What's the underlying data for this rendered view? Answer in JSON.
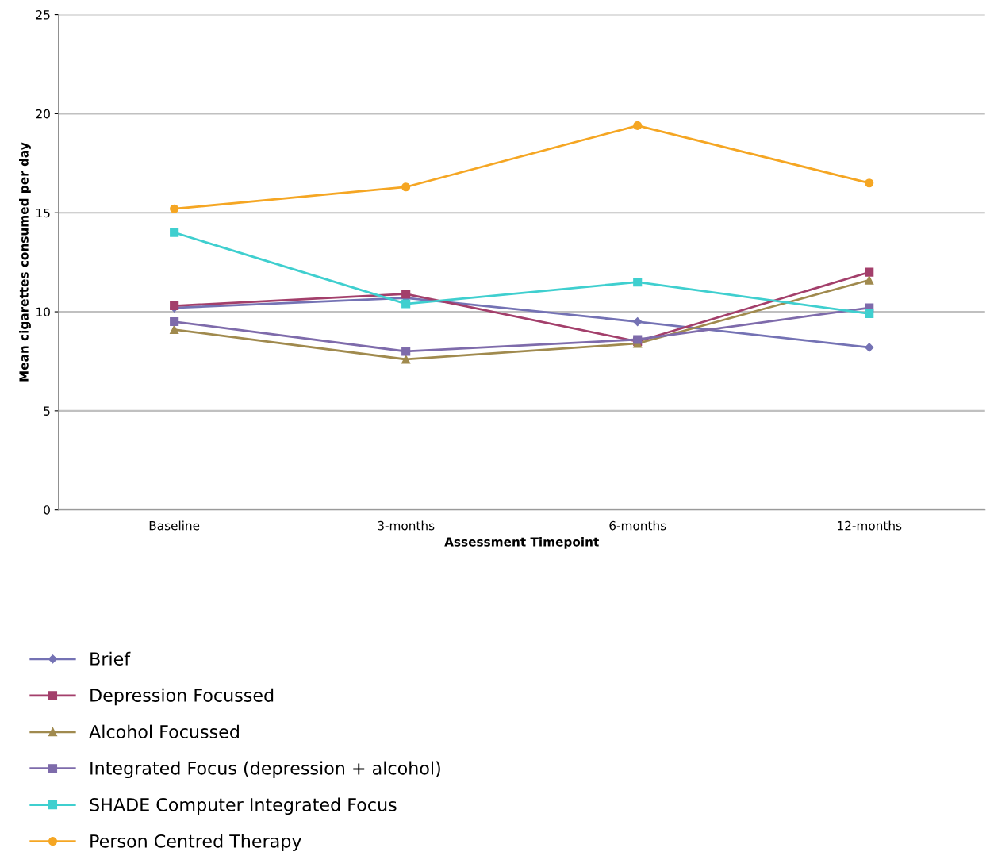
{
  "chart_data": {
    "type": "line",
    "xlabel": "Assessment Timepoint",
    "ylabel": "Mean cigarettes consumed per day",
    "categories": [
      "Baseline",
      "3-months",
      "6-months",
      "12-months"
    ],
    "series": [
      {
        "name": "Brief",
        "color": "#7472b4",
        "marker": "diamond",
        "values": [
          10.2,
          10.7,
          9.5,
          8.2
        ]
      },
      {
        "name": "Depression Focussed",
        "color": "#a33f6b",
        "marker": "square",
        "values": [
          10.3,
          10.9,
          8.5,
          12.0
        ]
      },
      {
        "name": "Alcohol Focussed",
        "color": "#a08a4e",
        "marker": "triangle",
        "values": [
          9.1,
          7.6,
          8.4,
          11.6
        ]
      },
      {
        "name": "Integrated Focus (depression + alcohol)",
        "color": "#7e6bab",
        "marker": "square",
        "values": [
          9.5,
          8.0,
          8.6,
          10.2
        ]
      },
      {
        "name": "SHADE Computer Integrated Focus",
        "color": "#3fcfcf",
        "marker": "square",
        "values": [
          14.0,
          10.4,
          11.5,
          9.9
        ]
      },
      {
        "name": "Person Centred Therapy",
        "color": "#f5a623",
        "marker": "circle",
        "values": [
          15.2,
          16.3,
          19.4,
          16.5
        ]
      }
    ],
    "ylim": [
      0,
      25
    ],
    "yticks": [
      0,
      5,
      10,
      15,
      20,
      25
    ],
    "grid": "y",
    "legend": "bottom left",
    "line_style": "solid"
  }
}
